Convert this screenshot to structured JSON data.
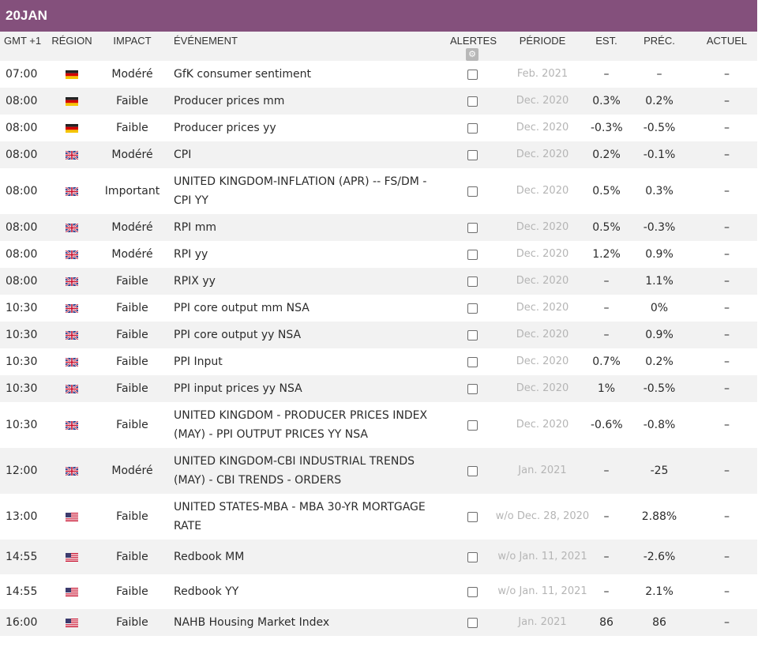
{
  "date_header": {
    "day": "20",
    "month": "JAN"
  },
  "columns": {
    "gmt": "GMT +1",
    "region": "RÉGION",
    "impact": "IMPACT",
    "event": "ÉVÉNEMENT",
    "alerts": "ALERTES",
    "period": "PÉRIODE",
    "est": "EST.",
    "prev": "PRÉC.",
    "actual": "ACTUEL"
  },
  "alerts_settings_icon": "gear-icon",
  "rows": [
    {
      "time": "07:00",
      "flag": "de",
      "impact": "Modéré",
      "event": "GfK consumer sentiment",
      "period": "Feb. 2021",
      "est": "–",
      "prev": "–",
      "actual": "–"
    },
    {
      "time": "08:00",
      "flag": "de",
      "impact": "Faible",
      "event": "Producer prices mm",
      "period": "Dec. 2020",
      "est": "0.3%",
      "prev": "0.2%",
      "actual": "–"
    },
    {
      "time": "08:00",
      "flag": "de",
      "impact": "Faible",
      "event": "Producer prices yy",
      "period": "Dec. 2020",
      "est": "-0.3%",
      "prev": "-0.5%",
      "actual": "–"
    },
    {
      "time": "08:00",
      "flag": "gb",
      "impact": "Modéré",
      "event": "CPI",
      "period": "Dec. 2020",
      "est": "0.2%",
      "prev": "-0.1%",
      "actual": "–"
    },
    {
      "time": "08:00",
      "flag": "gb",
      "impact": "Important",
      "event": "UNITED KINGDOM-INFLATION (APR) -- FS/DM - CPI YY",
      "period": "Dec. 2020",
      "est": "0.5%",
      "prev": "0.3%",
      "actual": "–"
    },
    {
      "time": "08:00",
      "flag": "gb",
      "impact": "Modéré",
      "event": "RPI mm",
      "period": "Dec. 2020",
      "est": "0.5%",
      "prev": "-0.3%",
      "actual": "–"
    },
    {
      "time": "08:00",
      "flag": "gb",
      "impact": "Modéré",
      "event": "RPI yy",
      "period": "Dec. 2020",
      "est": "1.2%",
      "prev": "0.9%",
      "actual": "–"
    },
    {
      "time": "08:00",
      "flag": "gb",
      "impact": "Faible",
      "event": "RPIX yy",
      "period": "Dec. 2020",
      "est": "–",
      "prev": "1.1%",
      "actual": "–"
    },
    {
      "time": "10:30",
      "flag": "gb",
      "impact": "Faible",
      "event": "PPI core output mm NSA",
      "period": "Dec. 2020",
      "est": "–",
      "prev": "0%",
      "actual": "–"
    },
    {
      "time": "10:30",
      "flag": "gb",
      "impact": "Faible",
      "event": "PPI core output yy NSA",
      "period": "Dec. 2020",
      "est": "–",
      "prev": "0.9%",
      "actual": "–"
    },
    {
      "time": "10:30",
      "flag": "gb",
      "impact": "Faible",
      "event": "PPI Input",
      "period": "Dec. 2020",
      "est": "0.7%",
      "prev": "0.2%",
      "actual": "–"
    },
    {
      "time": "10:30",
      "flag": "gb",
      "impact": "Faible",
      "event": "PPI input prices yy NSA",
      "period": "Dec. 2020",
      "est": "1%",
      "prev": "-0.5%",
      "actual": "–"
    },
    {
      "time": "10:30",
      "flag": "gb",
      "impact": "Faible",
      "event": "UNITED KINGDOM - PRODUCER PRICES INDEX (MAY) - PPI OUTPUT PRICES YY NSA",
      "period": "Dec. 2020",
      "est": "-0.6%",
      "prev": "-0.8%",
      "actual": "–"
    },
    {
      "time": "12:00",
      "flag": "gb",
      "impact": "Modéré",
      "event": "UNITED KINGDOM-CBI INDUSTRIAL TRENDS (MAY) - CBI TRENDS - ORDERS",
      "period": "Jan. 2021",
      "est": "–",
      "prev": "-25",
      "actual": "–"
    },
    {
      "time": "13:00",
      "flag": "us",
      "impact": "Faible",
      "event": "UNITED STATES-MBA - MBA 30-YR MORTGAGE RATE",
      "period": "w/o Dec. 28, 2020",
      "est": "–",
      "prev": "2.88%",
      "actual": "–"
    },
    {
      "time": "14:55",
      "flag": "us",
      "impact": "Faible",
      "event": "Redbook MM",
      "period": "w/o Jan. 11, 2021",
      "est": "–",
      "prev": "-2.6%",
      "actual": "–"
    },
    {
      "time": "14:55",
      "flag": "us",
      "impact": "Faible",
      "event": "Redbook YY",
      "period": "w/o Jan. 11, 2021",
      "est": "–",
      "prev": "2.1%",
      "actual": "–"
    },
    {
      "time": "16:00",
      "flag": "us",
      "impact": "Faible",
      "event": "NAHB Housing Market Index",
      "period": "Jan. 2021",
      "est": "86",
      "prev": "86",
      "actual": "–"
    }
  ]
}
